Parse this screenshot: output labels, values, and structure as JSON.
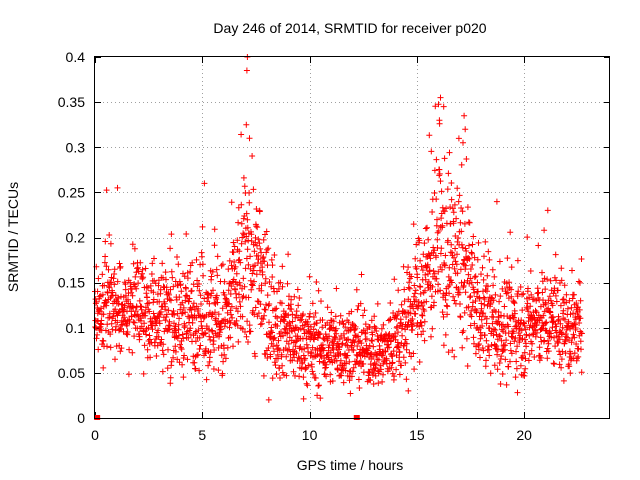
{
  "chart_data": {
    "type": "scatter",
    "title": "Day 246 of 2014, SRMTID for receiver p020",
    "xlabel": "GPS time / hours",
    "ylabel": "SRMTID / TECUs",
    "xlim": [
      0,
      24
    ],
    "ylim": [
      0,
      0.4
    ],
    "xticks": [
      0,
      5,
      10,
      15,
      20
    ],
    "xtick_labels": [
      "0",
      "5",
      "10",
      "15",
      "20"
    ],
    "yticks": [
      0,
      0.05,
      0.1,
      0.15,
      0.2,
      0.25,
      0.3,
      0.35,
      0.4
    ],
    "ytick_labels": [
      "0",
      "0.05",
      "0.1",
      "0.15",
      "0.2",
      "0.25",
      "0.3",
      "0.35",
      "0.4"
    ],
    "grid": true,
    "marker": "+",
    "color": "#ff0000",
    "series": [
      {
        "name": "SRMTID",
        "sample_rate_hours": 0.01,
        "n_points": 2270,
        "x_start": 0.0,
        "baseline_profile": {
          "x": [
            0,
            1,
            2,
            3,
            4,
            5,
            6,
            6.8,
            7.3,
            8,
            9,
            10,
            11,
            12,
            13,
            13.5,
            14,
            14.5,
            15,
            15.5,
            16,
            16.5,
            17,
            17.5,
            18,
            19,
            20,
            21,
            22,
            22.7
          ],
          "y": [
            0.105,
            0.125,
            0.12,
            0.115,
            0.11,
            0.12,
            0.1,
            0.16,
            0.18,
            0.12,
            0.095,
            0.08,
            0.08,
            0.078,
            0.075,
            0.072,
            0.085,
            0.1,
            0.13,
            0.16,
            0.19,
            0.18,
            0.17,
            0.14,
            0.115,
            0.1,
            0.1,
            0.11,
            0.1,
            0.095
          ]
        },
        "spread_profile": {
          "x": [
            0,
            5,
            6.5,
            7.3,
            8.5,
            10,
            12,
            14,
            15.3,
            16.2,
            17,
            18,
            20,
            22.7
          ],
          "y": [
            0.035,
            0.04,
            0.05,
            0.07,
            0.04,
            0.03,
            0.025,
            0.03,
            0.045,
            0.07,
            0.06,
            0.04,
            0.035,
            0.035
          ]
        },
        "peaks": [
          {
            "x": 7.1,
            "y": 0.4
          },
          {
            "x": 7.08,
            "y": 0.385
          },
          {
            "x": 7.05,
            "y": 0.325
          },
          {
            "x": 7.2,
            "y": 0.31
          },
          {
            "x": 16.1,
            "y": 0.355
          },
          {
            "x": 16.25,
            "y": 0.345
          },
          {
            "x": 16.05,
            "y": 0.33
          },
          {
            "x": 17.2,
            "y": 0.335
          },
          {
            "x": 17.25,
            "y": 0.32
          },
          {
            "x": 17.15,
            "y": 0.305
          },
          {
            "x": 1.05,
            "y": 0.255
          },
          {
            "x": 21.1,
            "y": 0.23
          },
          {
            "x": 10.5,
            "y": 0.022
          },
          {
            "x": 14.6,
            "y": 0.03
          }
        ],
        "zero_points": [
          {
            "x": 0.1,
            "y": 0.0
          },
          {
            "x": 12.2,
            "y": 0.0
          }
        ]
      }
    ]
  }
}
